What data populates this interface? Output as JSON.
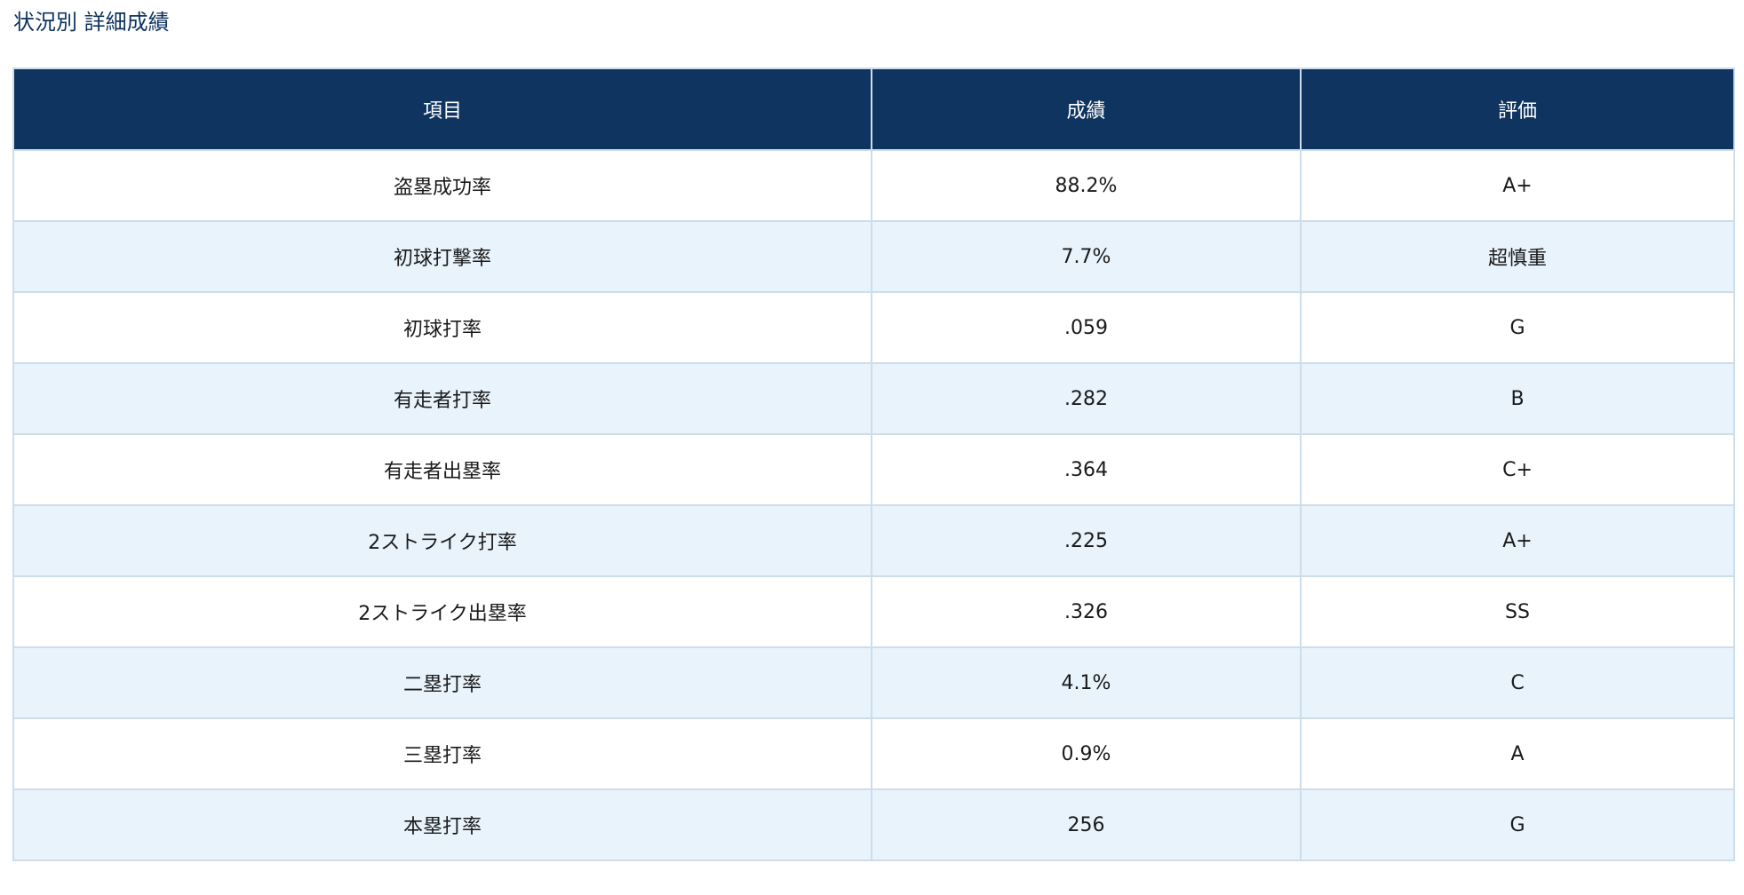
{
  "page": {
    "title": "状況別 詳細成績"
  },
  "table": {
    "headers": [
      "項目",
      "成績",
      "評価"
    ],
    "rows": [
      {
        "item": "盗塁成功率",
        "value": "88.2%",
        "grade": "A+"
      },
      {
        "item": "初球打撃率",
        "value": "7.7%",
        "grade": "超慎重"
      },
      {
        "item": "初球打率",
        "value": ".059",
        "grade": "G"
      },
      {
        "item": "有走者打率",
        "value": ".282",
        "grade": "B"
      },
      {
        "item": "有走者出塁率",
        "value": ".364",
        "grade": "C+"
      },
      {
        "item": "2ストライク打率",
        "value": ".225",
        "grade": "A+"
      },
      {
        "item": "2ストライク出塁率",
        "value": ".326",
        "grade": "SS"
      },
      {
        "item": "二塁打率",
        "value": "4.1%",
        "grade": "C"
      },
      {
        "item": "三塁打率",
        "value": "0.9%",
        "grade": "A"
      },
      {
        "item": "本塁打率",
        "value": "256",
        "grade": "G"
      }
    ]
  },
  "colors": {
    "header_bg": "#0f3460",
    "header_text": "#ffffff",
    "row_alt_bg": "#e8f3fc",
    "border": "#cdddea",
    "title_text": "#0f3460"
  }
}
